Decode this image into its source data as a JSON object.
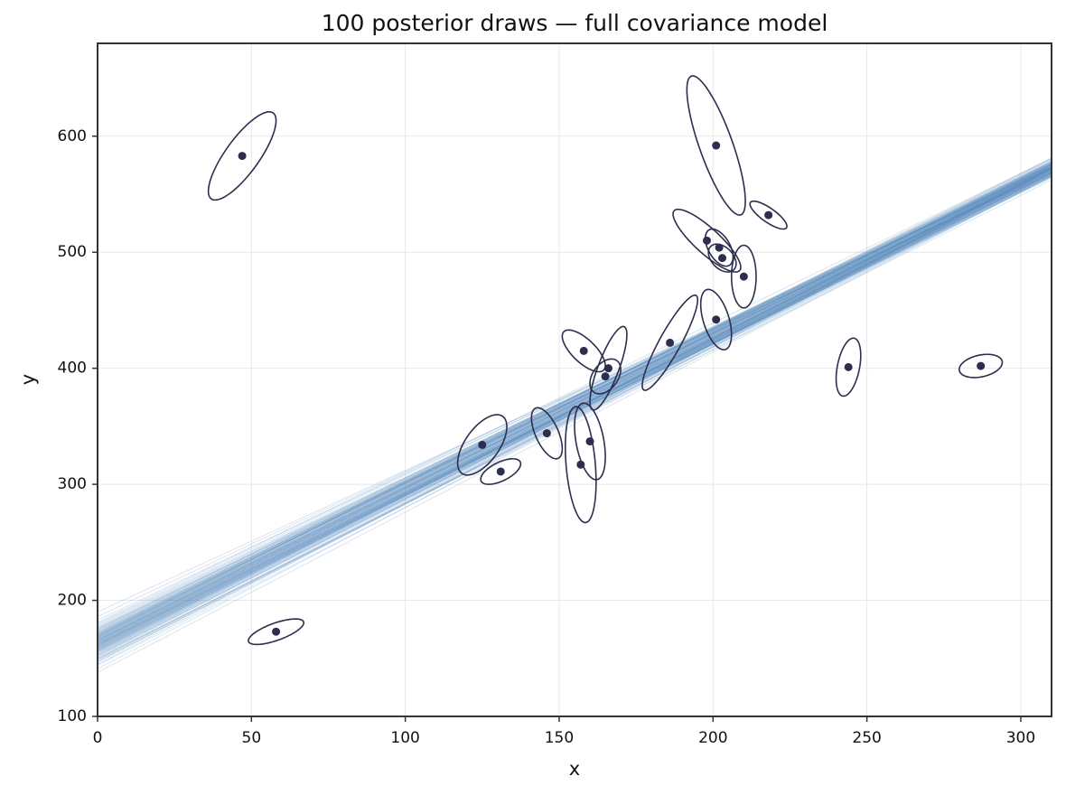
{
  "chart_data": {
    "type": "scatter",
    "title": "100 posterior draws — full covariance model",
    "x_label": "x",
    "y_label": "y",
    "xlim": [
      0,
      310
    ],
    "ylim": [
      100,
      680
    ],
    "xticks": [
      0,
      50,
      100,
      150,
      200,
      250,
      300
    ],
    "yticks": [
      100,
      200,
      300,
      400,
      500,
      600
    ],
    "grid": true,
    "points": {
      "color": "#2d2d4e",
      "x": [
        47,
        58,
        201,
        218,
        198,
        202,
        203,
        210,
        201,
        186,
        158,
        166,
        165,
        125,
        131,
        146,
        160,
        157,
        244,
        287
      ],
      "y": [
        583,
        173,
        592,
        532,
        510,
        504,
        495,
        479,
        442,
        422,
        415,
        400,
        393,
        334,
        311,
        344,
        337,
        317,
        401,
        402
      ],
      "sx": [
        11,
        9,
        9.5,
        6,
        11,
        4.5,
        4.5,
        4,
        5,
        9,
        7,
        6,
        5,
        8,
        6.5,
        5,
        5,
        5,
        4,
        7
      ],
      "sy": [
        38,
        11,
        60,
        12,
        27,
        16,
        12,
        27,
        26,
        41,
        18,
        36,
        15,
        26,
        11,
        22,
        33,
        50,
        25,
        10
      ],
      "rho": [
        0.8,
        0.7,
        -0.8,
        -0.8,
        -0.85,
        -0.5,
        -0.4,
        0,
        -0.5,
        0.9,
        -0.7,
        0.8,
        0.4,
        0.6,
        0.6,
        -0.6,
        -0.4,
        -0.3,
        0.4,
        0.3
      ]
    },
    "draws": {
      "color": "#4a7fb5",
      "intercept": [
        165,
        158,
        172,
        161,
        149,
        176,
        168,
        155,
        163,
        170,
        152,
        181,
        160,
        166,
        147,
        174,
        159,
        167,
        171,
        156,
        162,
        178,
        150,
        164,
        169,
        145,
        173,
        157,
        165,
        160,
        183,
        154,
        168,
        162,
        148,
        175,
        163,
        158,
        170,
        166,
        141,
        172,
        161,
        156,
        167,
        179,
        153,
        164,
        169,
        159,
        186,
        151,
        166,
        162,
        174,
        157,
        144,
        171,
        165,
        160,
        168,
        155,
        177,
        163,
        150,
        170,
        161,
        166,
        158,
        173,
        147,
        164,
        169,
        156,
        162,
        180,
        152,
        167,
        159,
        171,
        163,
        154,
        175,
        160,
        166,
        149,
        172,
        158,
        165,
        170,
        138,
        161,
        168,
        157,
        164,
        176,
        153,
        169,
        162,
        190
      ],
      "slope": [
        1.31,
        1.34,
        1.29,
        1.33,
        1.36,
        1.27,
        1.32,
        1.33,
        1.3,
        1.31,
        1.35,
        1.29,
        1.32,
        1.33,
        1.37,
        1.3,
        1.31,
        1.3,
        1.32,
        1.34,
        1.32,
        1.28,
        1.33,
        1.31,
        1.33,
        1.38,
        1.29,
        1.32,
        1.33,
        1.34,
        1.26,
        1.36,
        1.3,
        1.31,
        1.35,
        1.29,
        1.33,
        1.32,
        1.3,
        1.31,
        1.39,
        1.31,
        1.3,
        1.35,
        1.32,
        1.27,
        1.34,
        1.32,
        1.31,
        1.33,
        1.25,
        1.36,
        1.3,
        1.34,
        1.28,
        1.33,
        1.36,
        1.3,
        1.32,
        1.31,
        1.31,
        1.35,
        1.28,
        1.31,
        1.34,
        1.32,
        1.31,
        1.32,
        1.33,
        1.3,
        1.36,
        1.33,
        1.29,
        1.33,
        1.3,
        1.28,
        1.34,
        1.31,
        1.32,
        1.29,
        1.32,
        1.34,
        1.3,
        1.33,
        1.31,
        1.35,
        1.3,
        1.34,
        1.3,
        1.31,
        1.38,
        1.32,
        1.33,
        1.34,
        1.3,
        1.29,
        1.35,
        1.32,
        1.31,
        1.22
      ]
    }
  }
}
